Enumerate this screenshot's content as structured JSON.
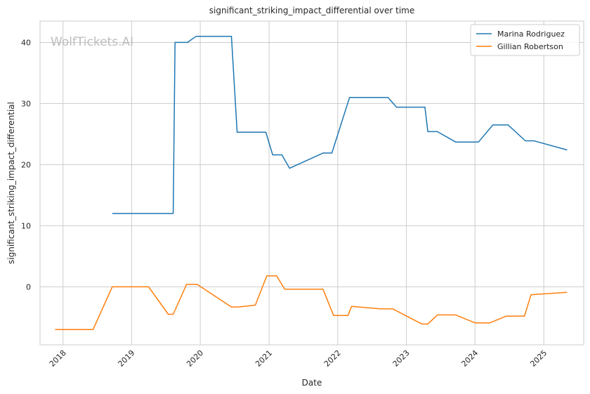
{
  "chart_data": {
    "type": "line",
    "title": "significant_striking_impact_differential over time",
    "xlabel": "Date",
    "ylabel": "significant_striking_impact_differential",
    "watermark": "WolfTickets.AI",
    "xlim": [
      "2017-09-01",
      "2025-08-01"
    ],
    "ylim": [
      -9.5,
      43.5
    ],
    "x_ticks": [
      "2018-01-01",
      "2019-01-01",
      "2020-01-01",
      "2021-01-01",
      "2022-01-01",
      "2023-01-01",
      "2024-01-01",
      "2025-01-01"
    ],
    "x_tick_labels": [
      "2018",
      "2019",
      "2020",
      "2021",
      "2022",
      "2023",
      "2024",
      "2025"
    ],
    "y_ticks": [
      0,
      10,
      20,
      30,
      40
    ],
    "y_tick_labels": [
      "0",
      "10",
      "20",
      "30",
      "40"
    ],
    "grid": true,
    "legend_position": "top-right",
    "series": [
      {
        "name": "Marina Rodriguez",
        "color": "#1f77b4",
        "points": [
          [
            "2018-09-20",
            12.0
          ],
          [
            "2019-08-10",
            12.0
          ],
          [
            "2019-08-20",
            40.0
          ],
          [
            "2019-10-25",
            40.0
          ],
          [
            "2019-12-10",
            41.0
          ],
          [
            "2020-06-15",
            41.0
          ],
          [
            "2020-07-15",
            25.3
          ],
          [
            "2020-12-15",
            25.3
          ],
          [
            "2021-01-20",
            21.6
          ],
          [
            "2021-03-10",
            21.6
          ],
          [
            "2021-04-20",
            19.4
          ],
          [
            "2021-10-15",
            21.9
          ],
          [
            "2021-12-01",
            21.9
          ],
          [
            "2022-03-05",
            31.0
          ],
          [
            "2022-09-25",
            31.0
          ],
          [
            "2022-11-10",
            29.4
          ],
          [
            "2023-04-10",
            29.4
          ],
          [
            "2023-04-25",
            25.4
          ],
          [
            "2023-06-15",
            25.4
          ],
          [
            "2023-09-20",
            23.7
          ],
          [
            "2024-01-20",
            23.7
          ],
          [
            "2024-04-05",
            26.5
          ],
          [
            "2024-06-25",
            26.5
          ],
          [
            "2024-09-25",
            23.9
          ],
          [
            "2024-11-10",
            23.9
          ],
          [
            "2025-05-05",
            22.4
          ]
        ]
      },
      {
        "name": "Gillian Robertson",
        "color": "#ff7f0e",
        "points": [
          [
            "2017-11-20",
            -7.0
          ],
          [
            "2018-06-10",
            -7.0
          ],
          [
            "2018-09-20",
            0.0
          ],
          [
            "2019-04-01",
            0.0
          ],
          [
            "2019-07-15",
            -4.5
          ],
          [
            "2019-08-10",
            -4.5
          ],
          [
            "2019-10-20",
            0.4
          ],
          [
            "2019-12-15",
            0.4
          ],
          [
            "2020-06-15",
            -3.3
          ],
          [
            "2020-07-20",
            -3.3
          ],
          [
            "2020-10-20",
            -3.0
          ],
          [
            "2020-12-20",
            1.8
          ],
          [
            "2021-02-10",
            1.8
          ],
          [
            "2021-03-25",
            -0.4
          ],
          [
            "2021-10-15",
            -0.4
          ],
          [
            "2021-12-10",
            -4.7
          ],
          [
            "2022-02-25",
            -4.7
          ],
          [
            "2022-03-15",
            -3.2
          ],
          [
            "2022-08-15",
            -3.6
          ],
          [
            "2022-10-20",
            -3.6
          ],
          [
            "2023-03-25",
            -6.1
          ],
          [
            "2023-04-25",
            -6.1
          ],
          [
            "2023-06-15",
            -4.6
          ],
          [
            "2023-09-20",
            -4.6
          ],
          [
            "2024-01-01",
            -5.9
          ],
          [
            "2024-03-20",
            -5.9
          ],
          [
            "2024-06-15",
            -4.8
          ],
          [
            "2024-09-20",
            -4.8
          ],
          [
            "2024-10-25",
            -1.3
          ],
          [
            "2025-05-05",
            -0.9
          ]
        ]
      }
    ]
  }
}
